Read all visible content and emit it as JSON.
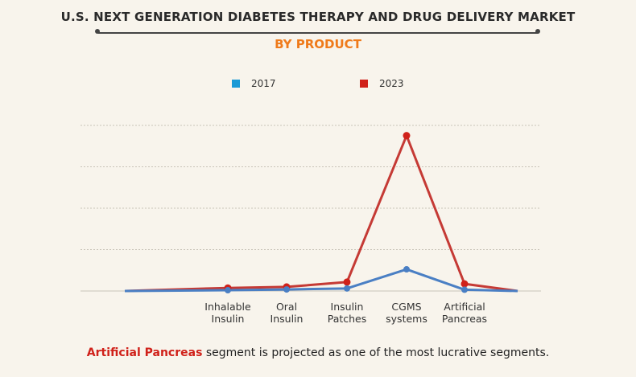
{
  "title": "U.S. NEXT GENERATION DIABETES THERAPY AND DRUG DELIVERY MARKET",
  "subtitle": "BY PRODUCT",
  "caption": {
    "highlight": "Artificial Pancreas",
    "rest": " segment is projected as one of the most lucrative segments."
  },
  "colors": {
    "series_2017": "#4a7fc4",
    "series_2023": "#c53a35",
    "legend_2017": "#1a9ad6",
    "legend_2023": "#d0211a",
    "grid": "#c9c3b8",
    "subtitle": "#ef7a1a"
  },
  "chart_data": {
    "type": "line",
    "categories": [
      "",
      "Inhalable\nInsulin",
      "Oral\nInsulin",
      "Insulin\nPatches",
      "CGMS\nsystems",
      "Artificial\nPancreas",
      ""
    ],
    "series": [
      {
        "name": "2017",
        "values": [
          0,
          0.3,
          0.6,
          1.0,
          8.5,
          0.5,
          0
        ],
        "markers": [
          false,
          true,
          true,
          true,
          true,
          true,
          false
        ]
      },
      {
        "name": "2023",
        "values": [
          0,
          1.2,
          1.6,
          3.5,
          61,
          2.8,
          0
        ],
        "markers": [
          false,
          true,
          true,
          true,
          true,
          true,
          false
        ]
      }
    ],
    "ylim": [
      0,
      65
    ],
    "gridlines": 5,
    "grid": true,
    "legend": "top-center"
  }
}
